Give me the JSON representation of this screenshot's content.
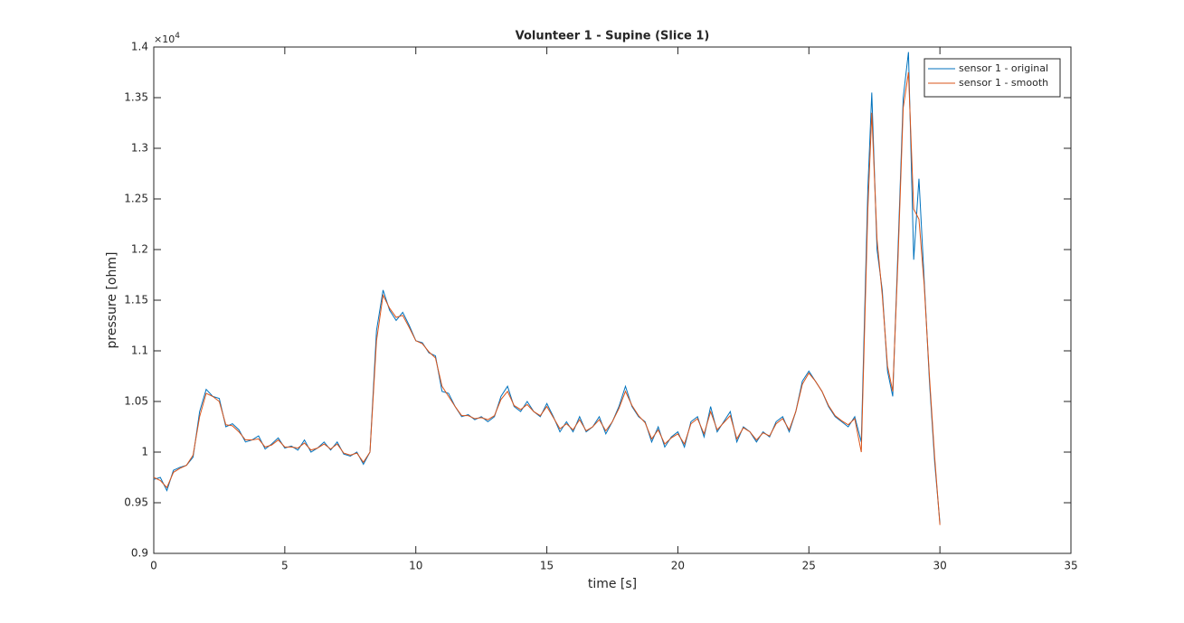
{
  "chart_data": {
    "type": "line",
    "title": "Volunteer 1 - Supine (Slice 1)",
    "xlabel": "time [s]",
    "ylabel": "pressure [ohm]",
    "y_exponent": {
      "base": "×10",
      "power": "4"
    },
    "xlim": [
      0,
      35
    ],
    "xticks": [
      0,
      5,
      10,
      15,
      20,
      25,
      30,
      35
    ],
    "ylim": [
      0.9,
      1.4
    ],
    "yticks": [
      0.9,
      0.95,
      1,
      1.05,
      1.1,
      1.15,
      1.2,
      1.25,
      1.3,
      1.35,
      1.4
    ],
    "legend": "northeast",
    "x": [
      0,
      0.25,
      0.5,
      0.75,
      1,
      1.25,
      1.5,
      1.75,
      2,
      2.25,
      2.5,
      2.75,
      3,
      3.25,
      3.5,
      3.75,
      4,
      4.25,
      4.5,
      4.75,
      5,
      5.25,
      5.5,
      5.75,
      6,
      6.25,
      6.5,
      6.75,
      7,
      7.25,
      7.5,
      7.75,
      8,
      8.25,
      8.5,
      8.75,
      9,
      9.25,
      9.5,
      9.75,
      10,
      10.25,
      10.5,
      10.75,
      11,
      11.25,
      11.5,
      11.75,
      12,
      12.25,
      12.5,
      12.75,
      13,
      13.25,
      13.5,
      13.75,
      14,
      14.25,
      14.5,
      14.75,
      15,
      15.25,
      15.5,
      15.75,
      16,
      16.25,
      16.5,
      16.75,
      17,
      17.25,
      17.5,
      17.75,
      18,
      18.25,
      18.5,
      18.75,
      19,
      19.25,
      19.5,
      19.75,
      20,
      20.25,
      20.5,
      20.75,
      21,
      21.25,
      21.5,
      21.75,
      22,
      22.25,
      22.5,
      22.75,
      23,
      23.25,
      23.5,
      23.75,
      24,
      24.25,
      24.5,
      24.75,
      25,
      25.25,
      25.5,
      25.75,
      26,
      26.25,
      26.5,
      26.75,
      27,
      27.25,
      27.4,
      27.6,
      27.8,
      28,
      28.2,
      28.4,
      28.6,
      28.8,
      29,
      29.2,
      29.4,
      29.6,
      29.8,
      30
    ],
    "series": [
      {
        "name": "sensor 1 - original",
        "color": "#0072bd",
        "values": [
          0.973,
          0.975,
          0.962,
          0.982,
          0.985,
          0.987,
          0.995,
          1.04,
          1.062,
          1.055,
          1.053,
          1.025,
          1.028,
          1.022,
          1.01,
          1.012,
          1.016,
          1.003,
          1.008,
          1.014,
          1.004,
          1.006,
          1.002,
          1.012,
          1.0,
          1.004,
          1.01,
          1.002,
          1.01,
          0.998,
          0.996,
          1.0,
          0.988,
          1.0,
          1.12,
          1.16,
          1.14,
          1.13,
          1.138,
          1.125,
          1.11,
          1.108,
          1.098,
          1.095,
          1.06,
          1.058,
          1.045,
          1.035,
          1.037,
          1.032,
          1.035,
          1.03,
          1.035,
          1.055,
          1.065,
          1.045,
          1.04,
          1.05,
          1.04,
          1.035,
          1.048,
          1.035,
          1.02,
          1.03,
          1.02,
          1.035,
          1.02,
          1.025,
          1.035,
          1.018,
          1.03,
          1.045,
          1.065,
          1.045,
          1.035,
          1.03,
          1.01,
          1.025,
          1.005,
          1.015,
          1.02,
          1.005,
          1.03,
          1.035,
          1.015,
          1.045,
          1.02,
          1.03,
          1.04,
          1.01,
          1.025,
          1.02,
          1.01,
          1.02,
          1.015,
          1.03,
          1.035,
          1.02,
          1.04,
          1.07,
          1.08,
          1.07,
          1.06,
          1.045,
          1.035,
          1.03,
          1.025,
          1.035,
          1.01,
          1.26,
          1.355,
          1.2,
          1.16,
          1.08,
          1.055,
          1.2,
          1.35,
          1.395,
          1.19,
          1.27,
          1.17,
          1.07,
          0.99,
          0.93
        ]
      },
      {
        "name": "sensor 1 - smooth",
        "color": "#d95319",
        "values": [
          0.975,
          0.972,
          0.965,
          0.98,
          0.984,
          0.987,
          0.997,
          1.035,
          1.058,
          1.055,
          1.05,
          1.027,
          1.026,
          1.02,
          1.012,
          1.012,
          1.013,
          1.005,
          1.007,
          1.012,
          1.005,
          1.005,
          1.004,
          1.009,
          1.002,
          1.004,
          1.008,
          1.003,
          1.008,
          0.999,
          0.997,
          0.999,
          0.99,
          1.0,
          1.11,
          1.155,
          1.142,
          1.133,
          1.135,
          1.123,
          1.11,
          1.107,
          1.099,
          1.093,
          1.065,
          1.055,
          1.045,
          1.036,
          1.036,
          1.033,
          1.034,
          1.032,
          1.036,
          1.052,
          1.06,
          1.046,
          1.042,
          1.047,
          1.04,
          1.036,
          1.045,
          1.034,
          1.023,
          1.028,
          1.022,
          1.032,
          1.021,
          1.025,
          1.032,
          1.021,
          1.03,
          1.043,
          1.06,
          1.046,
          1.036,
          1.029,
          1.013,
          1.022,
          1.008,
          1.014,
          1.018,
          1.008,
          1.028,
          1.033,
          1.018,
          1.04,
          1.022,
          1.029,
          1.036,
          1.013,
          1.024,
          1.02,
          1.012,
          1.019,
          1.016,
          1.028,
          1.033,
          1.022,
          1.04,
          1.067,
          1.078,
          1.07,
          1.06,
          1.046,
          1.036,
          1.031,
          1.027,
          1.033,
          1.0,
          1.24,
          1.335,
          1.21,
          1.155,
          1.085,
          1.06,
          1.19,
          1.34,
          1.375,
          1.24,
          1.23,
          1.165,
          1.075,
          0.995,
          0.928
        ]
      }
    ]
  }
}
